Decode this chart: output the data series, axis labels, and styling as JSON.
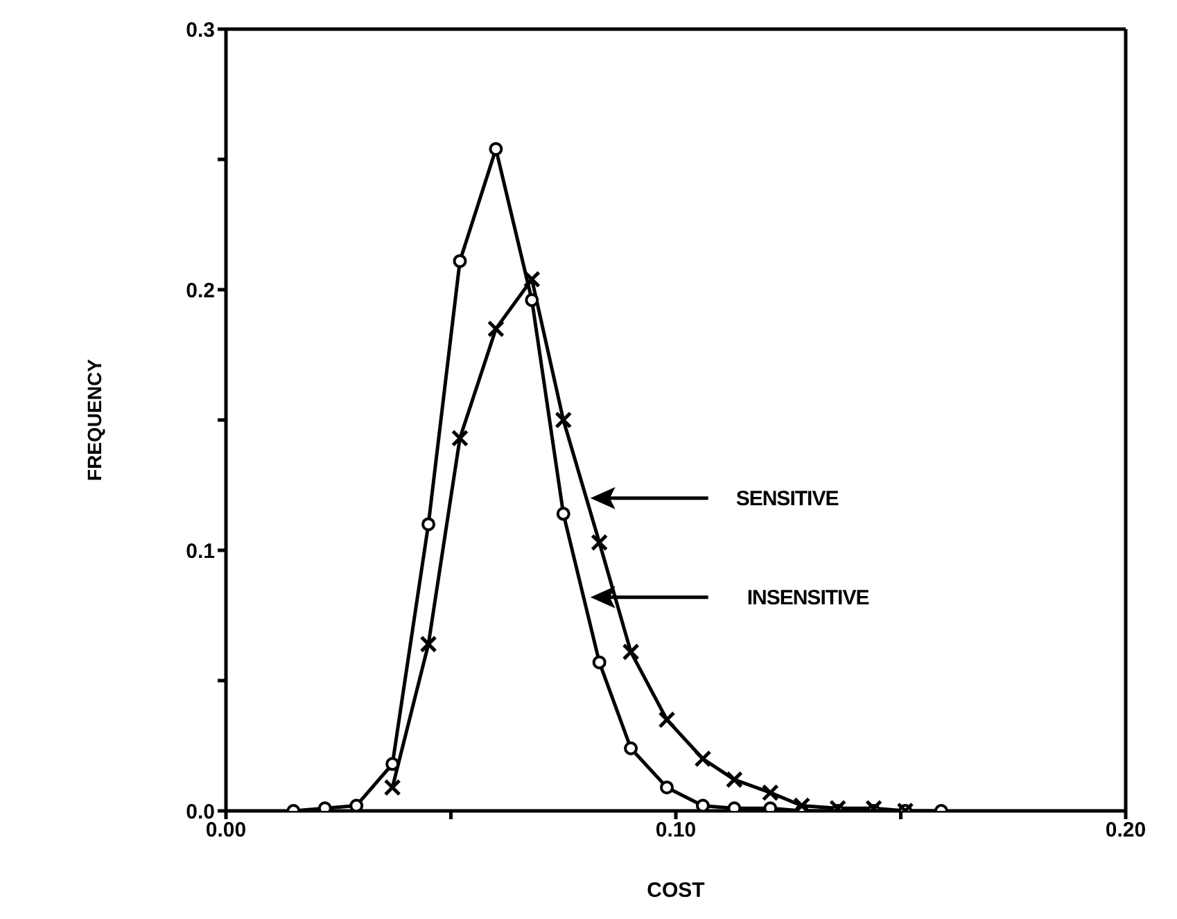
{
  "chart_data": {
    "type": "line",
    "xlabel": "COST",
    "ylabel": "FREQUENCY",
    "x": [
      0.015,
      0.022,
      0.029,
      0.037,
      0.045,
      0.052,
      0.06,
      0.068,
      0.075,
      0.083,
      0.09,
      0.098,
      0.106,
      0.113,
      0.121,
      0.128,
      0.136,
      0.144,
      0.151,
      0.159
    ],
    "series": [
      {
        "color": "#000000",
        "marker": "circle",
        "values": [
          0,
          0.001,
          0.002,
          0.018,
          0.11,
          0.211,
          0.254,
          0.196,
          0.114,
          0.057,
          0.024,
          0.009,
          0.002,
          0.001,
          0.001,
          0,
          0,
          0,
          0,
          0
        ]
      },
      {
        "color": "#000000",
        "marker": "cross",
        "values": [
          null,
          null,
          null,
          0.009,
          0.064,
          0.143,
          0.185,
          0.204,
          0.15,
          0.103,
          0.061,
          0.035,
          0.02,
          0.012,
          0.007,
          0.002,
          0.001,
          0.001,
          0,
          null
        ]
      }
    ],
    "xlim": [
      0,
      0.2
    ],
    "xticks": [
      {
        "value": 0,
        "label": "0.00"
      },
      {
        "value": 0.05,
        "label": null
      },
      {
        "value": 0.1,
        "label": "0.10"
      },
      {
        "value": 0.15,
        "label": null
      },
      {
        "value": 0.2,
        "label": "0.20"
      }
    ],
    "ylim": [
      0,
      0.3
    ],
    "yticks": [
      {
        "value": 0,
        "label": "0.0"
      },
      {
        "value": 0.05,
        "label": null
      },
      {
        "value": 0.1,
        "label": "0.1"
      },
      {
        "value": 0.15,
        "label": null
      },
      {
        "value": 0.2,
        "label": "0.2"
      },
      {
        "value": 0.25,
        "label": null
      },
      {
        "value": 0.3,
        "label": "0.3"
      }
    ],
    "grid": false,
    "legend": false,
    "line_style": "solid",
    "annotations": [
      "SENSITIVE",
      "INSENSITIVE"
    ]
  }
}
